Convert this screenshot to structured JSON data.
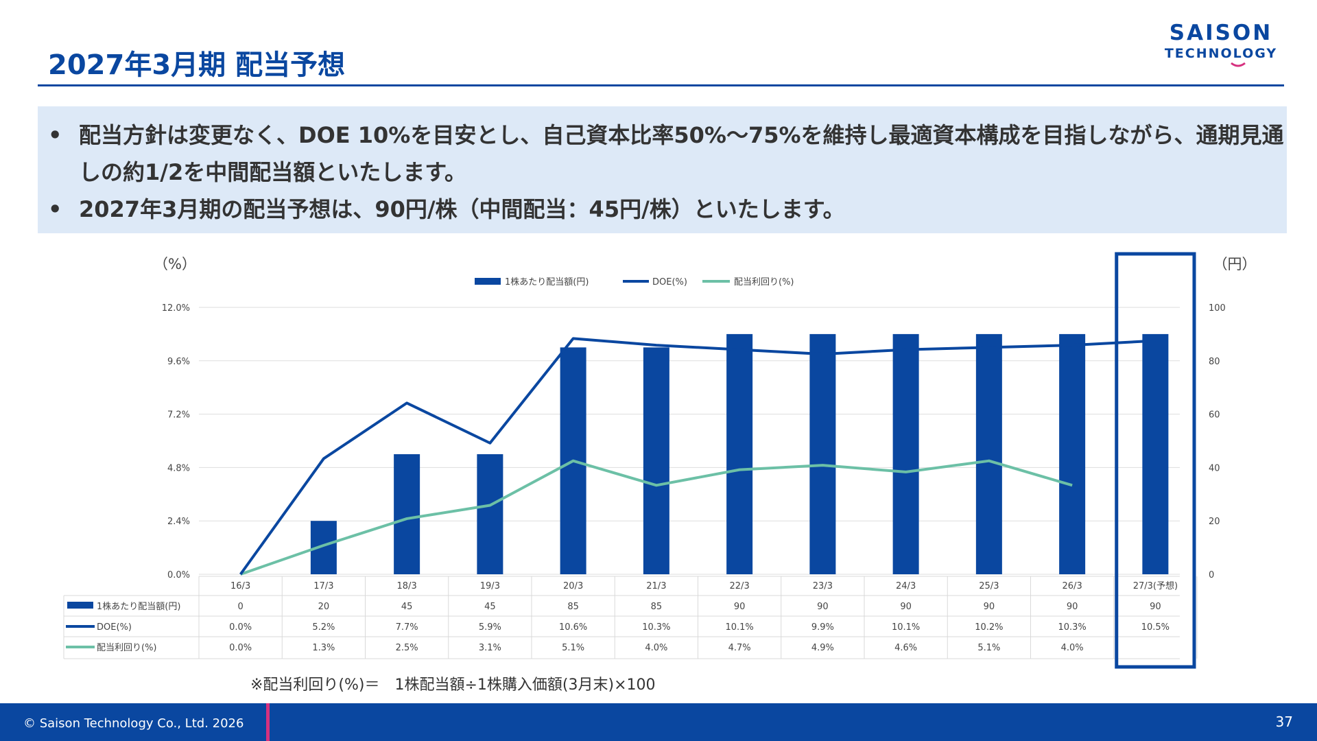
{
  "header": {
    "title": "2027年3月期 配当予想",
    "logo_top": "SAISON",
    "logo_bottom": "TECHNOLOGY"
  },
  "notes": {
    "bullet": "•",
    "items": [
      "配当方針は変更なく、DOE 10%を目安とし、自己資本比率50%～75%を維持し最適資本構成を目指しながら、通期見通しの約1/2を中間配当額といたします。",
      "2027年3月期の配当予想は、90円/株（中間配当：45円/株）といたします。"
    ]
  },
  "chart_data": {
    "type": "bar+line",
    "categories": [
      "16/3",
      "17/3",
      "18/3",
      "19/3",
      "20/3",
      "21/3",
      "22/3",
      "23/3",
      "24/3",
      "25/3",
      "26/3",
      "27/3(予想)"
    ],
    "left_axis_label": "（%）",
    "right_axis_label": "（円）",
    "left_ticks": [
      "12.0%",
      "9.6%",
      "7.2%",
      "4.8%",
      "2.4%",
      "0.0%"
    ],
    "right_ticks": [
      "100",
      "80",
      "60",
      "40",
      "20",
      "0"
    ],
    "ylim_left": [
      0,
      12
    ],
    "ylim_right": [
      0,
      100
    ],
    "legend_position": "top",
    "series": [
      {
        "name": "1株あたり配当額(円)",
        "kind": "bar",
        "axis": "right",
        "color": "#0a47a0",
        "values": [
          0,
          20,
          45,
          45,
          85,
          85,
          90,
          90,
          90,
          90,
          90,
          90
        ],
        "table_values": [
          "0",
          "20",
          "45",
          "45",
          "85",
          "85",
          "90",
          "90",
          "90",
          "90",
          "90",
          "90"
        ]
      },
      {
        "name": "DOE(%)",
        "kind": "line",
        "axis": "left",
        "color": "#0a47a0",
        "values": [
          0.0,
          5.2,
          7.7,
          5.9,
          10.6,
          10.3,
          10.1,
          9.9,
          10.1,
          10.2,
          10.3,
          10.5
        ],
        "table_values": [
          "0.0%",
          "5.2%",
          "7.7%",
          "5.9%",
          "10.6%",
          "10.3%",
          "10.1%",
          "9.9%",
          "10.1%",
          "10.2%",
          "10.3%",
          "10.5%"
        ]
      },
      {
        "name": "配当利回り(%)",
        "kind": "line",
        "axis": "left",
        "color": "#6cc0a6",
        "values": [
          0.0,
          1.3,
          2.5,
          3.1,
          5.1,
          4.0,
          4.7,
          4.9,
          4.6,
          5.1,
          4.0,
          null
        ],
        "table_values": [
          "0.0%",
          "1.3%",
          "2.5%",
          "3.1%",
          "5.1%",
          "4.0%",
          "4.7%",
          "4.9%",
          "4.6%",
          "5.1%",
          "4.0%",
          ""
        ]
      }
    ],
    "highlight_category": "27/3(予想)",
    "highlight_color": "#0a47a0"
  },
  "formula": "※配当利回り(%)＝　1株配当額÷1株購入価額(3月末)×100",
  "footer": {
    "copyright": "© Saison Technology Co., Ltd. 2026",
    "page": "37"
  }
}
